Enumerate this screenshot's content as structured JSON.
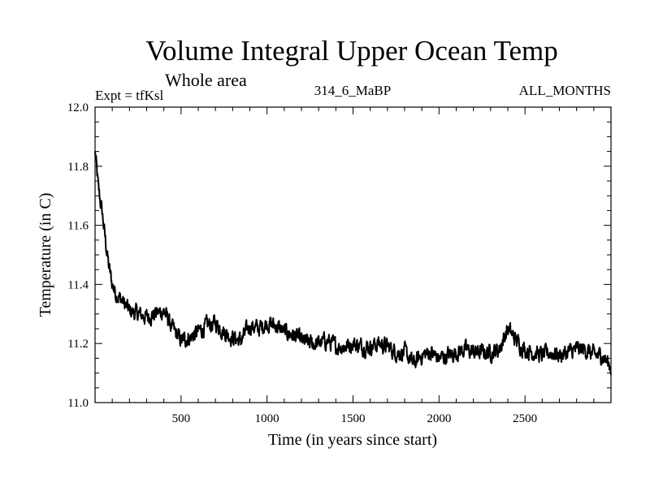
{
  "chart_data": {
    "type": "line",
    "title": "Volume Integral Upper Ocean Temp",
    "subtitle": "Whole area",
    "expt_label": "Expt = tfKsl",
    "run_label": "314_6_MaBP",
    "months_label": "ALL_MONTHS",
    "xlabel": "Time (in years since start)",
    "ylabel": "Temperature (in C)",
    "xlim": [
      0,
      3000
    ],
    "ylim": [
      11.0,
      12.0
    ],
    "x_ticks": [
      500,
      1000,
      1500,
      2000,
      2500
    ],
    "x_tick_labels": [
      "500",
      "1000",
      "1500",
      "2000",
      "2500"
    ],
    "y_ticks": [
      11.0,
      11.2,
      11.4,
      11.6,
      11.8,
      12.0
    ],
    "y_tick_labels": [
      "11.0",
      "11.2",
      "11.4",
      "11.6",
      "11.8",
      "12.0"
    ],
    "line_color": "#000000",
    "series": [
      {
        "name": "tfKsl",
        "x": [
          0,
          20,
          40,
          60,
          80,
          100,
          120,
          150,
          200,
          250,
          300,
          350,
          400,
          450,
          500,
          550,
          600,
          650,
          700,
          750,
          800,
          850,
          900,
          950,
          1000,
          1050,
          1100,
          1150,
          1200,
          1250,
          1300,
          1350,
          1400,
          1450,
          1500,
          1550,
          1600,
          1650,
          1700,
          1750,
          1800,
          1850,
          1900,
          1950,
          2000,
          2050,
          2100,
          2150,
          2200,
          2250,
          2300,
          2350,
          2400,
          2450,
          2500,
          2550,
          2600,
          2650,
          2700,
          2750,
          2800,
          2850,
          2900,
          2950,
          3000
        ],
        "values": [
          11.85,
          11.72,
          11.65,
          11.55,
          11.46,
          11.4,
          11.37,
          11.35,
          11.31,
          11.3,
          11.29,
          11.3,
          11.31,
          11.25,
          11.21,
          11.22,
          11.24,
          11.26,
          11.27,
          11.24,
          11.22,
          11.21,
          11.26,
          11.25,
          11.27,
          11.26,
          11.24,
          11.23,
          11.21,
          11.2,
          11.2,
          11.21,
          11.19,
          11.19,
          11.2,
          11.19,
          11.19,
          11.2,
          11.19,
          11.17,
          11.17,
          11.13,
          11.16,
          11.17,
          11.15,
          11.16,
          11.17,
          11.18,
          11.17,
          11.17,
          11.17,
          11.18,
          11.25,
          11.21,
          11.18,
          11.17,
          11.16,
          11.17,
          11.16,
          11.17,
          11.18,
          11.18,
          11.16,
          11.16,
          11.12
        ]
      }
    ]
  }
}
